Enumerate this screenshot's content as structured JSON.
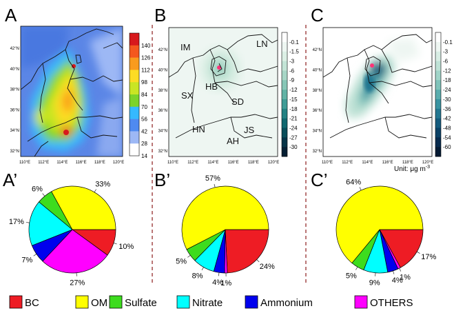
{
  "panels": {
    "A": {
      "letter": "A"
    },
    "B": {
      "letter": "B"
    },
    "C": {
      "letter": "C"
    },
    "Ap": {
      "letter": "A’"
    },
    "Bp": {
      "letter": "B’"
    },
    "Cp": {
      "letter": "C’"
    }
  },
  "map_axes": {
    "lat_ticks": [
      "42°N",
      "40°N",
      "38°N",
      "36°N",
      "34°N",
      "32°N"
    ],
    "lon_ticks": [
      "110°E",
      "112°E",
      "114°E",
      "116°E",
      "118°E",
      "120°E"
    ]
  },
  "regions": [
    "IM",
    "LN",
    "SX",
    "HB",
    "SD",
    "HN",
    "JS",
    "AH"
  ],
  "colorbars": {
    "A": {
      "labels": [
        "140",
        "126",
        "112",
        "98",
        "84",
        "70",
        "56",
        "42",
        "28",
        "14"
      ],
      "colors": [
        "#d7191c",
        "#f4581e",
        "#f99b1e",
        "#fddc24",
        "#c9e524",
        "#7cd32a",
        "#35b9ff",
        "#4f8af0",
        "#9db8f5",
        "#ffffff"
      ]
    },
    "B": {
      "labels": [
        "-0.1",
        "-1.5",
        "-3",
        "-6",
        "-9",
        "-12",
        "-15",
        "-18",
        "-21",
        "-24",
        "-27",
        "-30"
      ],
      "colors": [
        "#ffffff",
        "#eef6f2",
        "#dcefe5",
        "#c3e4d6",
        "#a7d6c6",
        "#87c6b6",
        "#63b3a6",
        "#3f9c96",
        "#238283",
        "#11686f",
        "#0a4e5a",
        "#063447",
        "#041f33"
      ]
    },
    "C": {
      "labels": [
        "-0.1",
        "-3",
        "-6",
        "-12",
        "-18",
        "-24",
        "-30",
        "-36",
        "-42",
        "-48",
        "-54",
        "-60"
      ],
      "colors": [
        "#ffffff",
        "#eef6f2",
        "#d8ede4",
        "#bfe2d6",
        "#a0d4c8",
        "#7fc3ba",
        "#5aadae",
        "#3993a1",
        "#237791",
        "#145b7d",
        "#0b4166",
        "#072a4d",
        "#041a33"
      ]
    }
  },
  "unit": {
    "prefix": "Unit: μg m",
    "sup": "-3"
  },
  "legend": [
    {
      "label": "BC",
      "color": "#ee1c24"
    },
    {
      "label": "OM",
      "color": "#ffff00"
    },
    {
      "label": "Sulfate",
      "color": "#3ddc1e"
    },
    {
      "label": "Nitrate",
      "color": "#00ffff"
    },
    {
      "label": "Ammonium",
      "color": "#0000ee"
    },
    {
      "label": "OTHERS",
      "color": "#ff00ff"
    }
  ],
  "chart_data": [
    {
      "type": "pie",
      "panel": "A’",
      "slices": [
        {
          "name": "BC",
          "value": 10,
          "label": "10%"
        },
        {
          "name": "OTHERS",
          "value": 27,
          "label": "27%"
        },
        {
          "name": "Ammonium",
          "value": 7,
          "label": "7%"
        },
        {
          "name": "Nitrate",
          "value": 17,
          "label": "17%"
        },
        {
          "name": "Sulfate",
          "value": 6,
          "label": "6%"
        },
        {
          "name": "OM",
          "value": 33,
          "label": "33%"
        }
      ]
    },
    {
      "type": "pie",
      "panel": "B’",
      "slices": [
        {
          "name": "BC",
          "value": 24,
          "label": "24%"
        },
        {
          "name": "OTHERS",
          "value": 1,
          "label": "1%"
        },
        {
          "name": "Ammonium",
          "value": 4,
          "label": "4%"
        },
        {
          "name": "Nitrate",
          "value": 8,
          "label": "8%"
        },
        {
          "name": "Sulfate",
          "value": 5,
          "label": "5%"
        },
        {
          "name": "OM",
          "value": 57,
          "label": "57%"
        }
      ]
    },
    {
      "type": "pie",
      "panel": "C’",
      "slices": [
        {
          "name": "BC",
          "value": 17,
          "label": "17%"
        },
        {
          "name": "OTHERS",
          "value": 1,
          "label": "1%"
        },
        {
          "name": "Ammonium",
          "value": 4,
          "label": "4%"
        },
        {
          "name": "Nitrate",
          "value": 9,
          "label": "9%"
        },
        {
          "name": "Sulfate",
          "value": 5,
          "label": "5%"
        },
        {
          "name": "OM",
          "value": 64,
          "label": "64%"
        }
      ]
    }
  ]
}
